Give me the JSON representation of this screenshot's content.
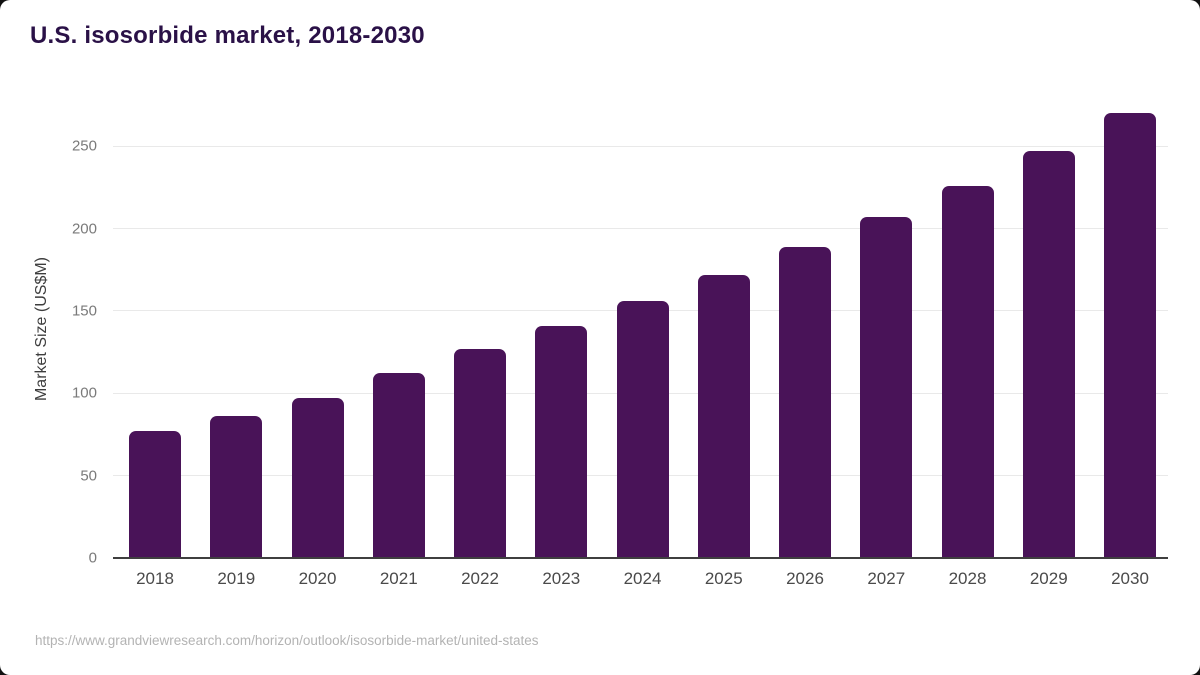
{
  "page": {
    "title": "U.S. isosorbide market, 2018-2030",
    "source_url": "https://www.grandviewresearch.com/horizon/outlook/isosorbide-market/united-states"
  },
  "colors": {
    "bar": "#491358",
    "title": "#2a1147",
    "axis_line": "#3f3f3f",
    "gridline": "#e9e9e9",
    "y_tick_label": "#7a7a7a",
    "x_tick_label": "#4a4a4a",
    "y_axis_title": "#3d3d3d",
    "source_text": "#b3b3b3",
    "background": "#ffffff"
  },
  "chart_data": {
    "type": "bar",
    "title": "U.S. isosorbide market, 2018-2030",
    "categories": [
      "2018",
      "2019",
      "2020",
      "2021",
      "2022",
      "2023",
      "2024",
      "2025",
      "2026",
      "2027",
      "2028",
      "2029",
      "2030"
    ],
    "values": [
      77,
      86,
      97,
      112,
      127,
      141,
      156,
      172,
      189,
      207,
      226,
      247,
      270
    ],
    "xlabel": "",
    "ylabel": "Market Size (US$M)",
    "ylim": [
      0,
      278
    ],
    "yticks": [
      0,
      50,
      100,
      150,
      200,
      250
    ],
    "grid": true,
    "legend": false,
    "bar_color": "#491358"
  }
}
